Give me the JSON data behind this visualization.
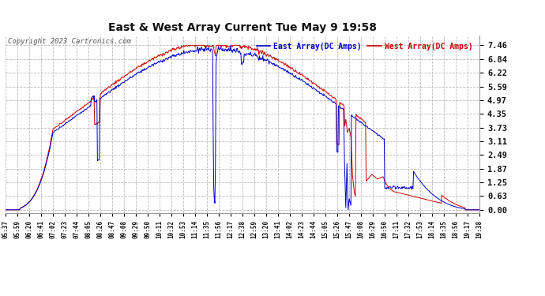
{
  "title": "East & West Array Current Tue May 9 19:58",
  "copyright": "Copyright 2023 Cartronics.com",
  "legend_east": "East Array(DC Amps)",
  "legend_west": "West Array(DC Amps)",
  "color_east": "#0000cc",
  "color_west": "#cc0000",
  "yticks": [
    0.0,
    0.63,
    1.25,
    1.87,
    2.49,
    3.11,
    3.73,
    4.35,
    4.97,
    5.59,
    6.22,
    6.84,
    7.46
  ],
  "ylim": [
    -0.15,
    7.9
  ],
  "background_color": "#ffffff",
  "grid_color": "#bbbbbb",
  "xtick_labels": [
    "05:37",
    "05:59",
    "06:20",
    "06:41",
    "07:02",
    "07:23",
    "07:44",
    "08:05",
    "08:26",
    "08:47",
    "09:08",
    "09:29",
    "09:50",
    "10:11",
    "10:32",
    "10:53",
    "11:14",
    "11:35",
    "11:56",
    "12:17",
    "12:38",
    "12:59",
    "13:20",
    "13:41",
    "14:02",
    "14:23",
    "14:44",
    "15:05",
    "15:26",
    "15:47",
    "16:08",
    "16:29",
    "16:50",
    "17:11",
    "17:32",
    "17:53",
    "18:14",
    "18:35",
    "18:56",
    "19:17",
    "19:38"
  ],
  "n_points": 841
}
